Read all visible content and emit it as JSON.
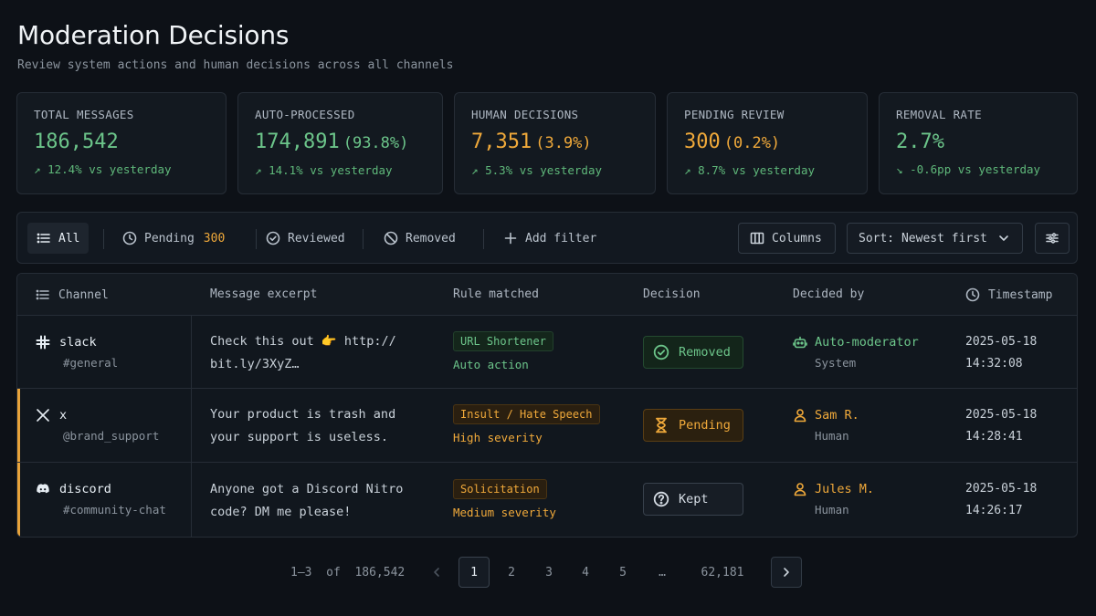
{
  "header": {
    "title": "Moderation Decisions",
    "subtitle": "Review system actions and human decisions across all channels"
  },
  "stats": [
    {
      "label": "TOTAL MESSAGES",
      "value": "186,542",
      "pct": "",
      "delta": "12.4% vs yesterday",
      "trend": "up",
      "color": "#6cc58a"
    },
    {
      "label": "AUTO-PROCESSED",
      "value": "174,891",
      "pct": "(93.8%)",
      "delta": "14.1% vs yesterday",
      "trend": "up",
      "color": "#6cc58a"
    },
    {
      "label": "HUMAN DECISIONS",
      "value": "7,351",
      "pct": "(3.9%)",
      "delta": "5.3% vs yesterday",
      "trend": "up",
      "color": "#f0a93a"
    },
    {
      "label": "PENDING REVIEW",
      "value": "300",
      "pct": "(0.2%)",
      "delta": "8.7% vs yesterday",
      "trend": "up",
      "color": "#f0a93a"
    },
    {
      "label": "REMOVAL RATE",
      "value": "2.7%",
      "pct": "",
      "delta": "-0.6pp vs yesterday",
      "trend": "down",
      "color": "#6cc58a"
    }
  ],
  "filters": {
    "all": "All",
    "pending": "Pending",
    "pending_count": "300",
    "reviewed": "Reviewed",
    "removed": "Removed",
    "add_filter": "Add filter",
    "columns": "Columns",
    "sort": "Sort: Newest first"
  },
  "table": {
    "headers": {
      "channel": "Channel",
      "message": "Message excerpt",
      "rule": "Rule matched",
      "decision": "Decision",
      "decided_by": "Decided by",
      "timestamp": "Timestamp"
    },
    "rows": [
      {
        "channel_icon": "slack-icon",
        "channel": "slack",
        "channel_sub": "#general",
        "message_l1": "Check this out 👉 http://",
        "message_l2": "bit.ly/3XyZ…",
        "rule": "URL Shortener",
        "rule_sub": "Auto action",
        "rule_color": "green",
        "decision": "Removed",
        "decision_type": "removed",
        "decided_by": "Auto-moderator",
        "decided_by_sub": "System",
        "decided_by_icon": "robot-icon",
        "date": "2025-05-18",
        "time": "14:32:08",
        "flagged": false
      },
      {
        "channel_icon": "x-icon",
        "channel": "x",
        "channel_sub": "@brand_support",
        "message_l1": "Your product is trash and",
        "message_l2": "your support is useless.",
        "rule": "Insult / Hate Speech",
        "rule_sub": "High severity",
        "rule_color": "amber",
        "decision": "Pending",
        "decision_type": "pending",
        "decided_by": "Sam R.",
        "decided_by_sub": "Human",
        "decided_by_icon": "user-icon",
        "date": "2025-05-18",
        "time": "14:28:41",
        "flagged": true
      },
      {
        "channel_icon": "discord-icon",
        "channel": "discord",
        "channel_sub": "#community-chat",
        "message_l1": "Anyone got a Discord Nitro",
        "message_l2": "code? DM me please!",
        "rule": "Solicitation",
        "rule_sub": "Medium severity",
        "rule_color": "amber",
        "decision": "Kept",
        "decision_type": "kept",
        "decided_by": "Jules M.",
        "decided_by_sub": "Human",
        "decided_by_icon": "user-icon",
        "date": "2025-05-18",
        "time": "14:26:17",
        "flagged": true
      }
    ]
  },
  "pagination": {
    "range": "1–3",
    "of": "of",
    "total": "186,542",
    "pages": [
      "1",
      "2",
      "3",
      "4",
      "5"
    ],
    "ellipsis": "…",
    "last": "62,181",
    "current": "1"
  }
}
